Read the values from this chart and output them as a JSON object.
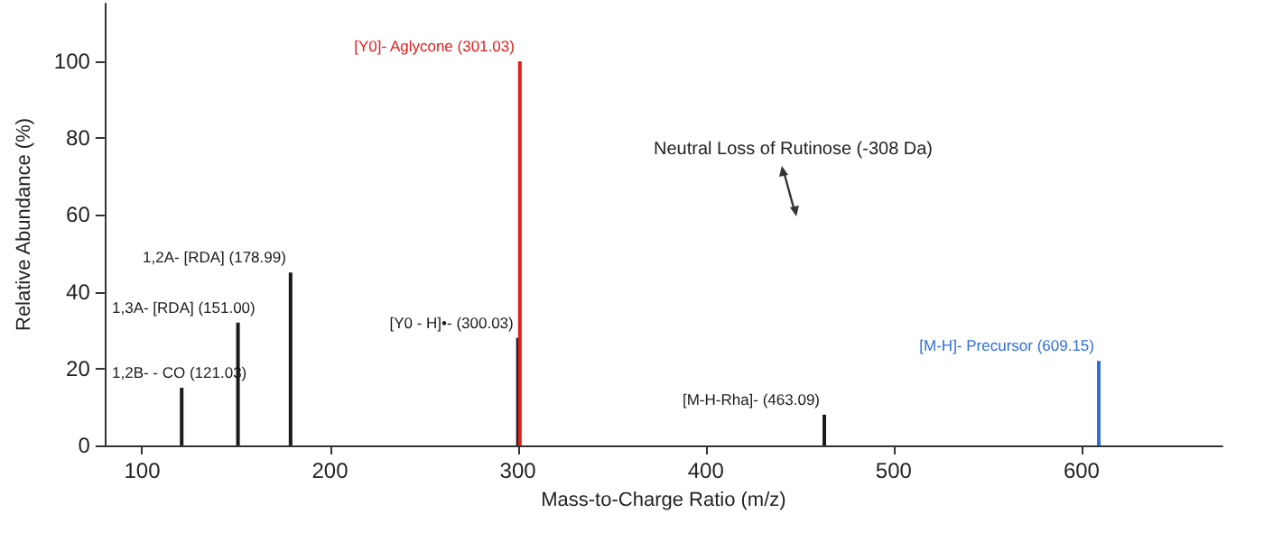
{
  "chart_data": {
    "type": "bar",
    "xlabel": "Mass-to-Charge Ratio (m/z)",
    "ylabel": "Relative Abundance (%)",
    "series": [
      {
        "color": "#1a1a1a",
        "x": [
          121.03,
          151.0,
          178.99,
          300.03,
          463.09
        ],
        "values": [
          15,
          32,
          45,
          28,
          8
        ]
      },
      {
        "color": "#e0201e",
        "x": [
          301.03
        ],
        "values": [
          100
        ]
      },
      {
        "color": "#2f6fd6",
        "x": [
          609.15
        ],
        "values": [
          22
        ]
      }
    ],
    "xlim": [
      80,
      675
    ],
    "xticks": [
      100,
      200,
      300,
      400,
      500,
      600
    ],
    "ylim": [
      0,
      115
    ],
    "yticks": [
      0,
      20,
      40,
      60,
      80,
      100
    ],
    "annotations": [
      {
        "text": "1,2B- - CO (121.03)",
        "x": 121.03,
        "y": 15
      },
      {
        "text": "1,3A- [RDA] (151.00)",
        "x": 151.0,
        "y": 32
      },
      {
        "text": "1,2A- [RDA] (178.99)",
        "x": 178.99,
        "y": 45
      },
      {
        "text": "[Y0 - H]•- (300.03)",
        "x": 300.03,
        "y": 28
      },
      {
        "text": "[Y0]- Aglycone (301.03)",
        "x": 301.03,
        "y": 100
      },
      {
        "text": "[M-H-Rha]- (463.09)",
        "x": 463.09,
        "y": 8
      },
      {
        "text": "[M-H]- Precursor (609.15)",
        "x": 609.15,
        "y": 22
      },
      "Neutral Loss of Rutinose (-308 Da)"
    ]
  }
}
